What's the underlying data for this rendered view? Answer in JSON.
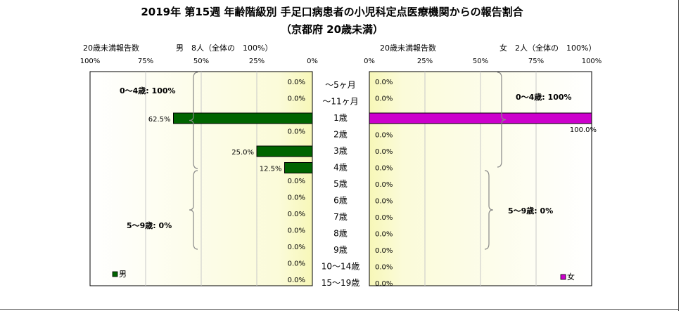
{
  "chart_data": {
    "type": "bar",
    "title": "2019年 第15週 年齢階級別 手足口病患者の小児科定点医療機関からの報告割合",
    "subtitle": "（京都府 20歳未満）",
    "categories": [
      "～5ヶ月",
      "～11ヶ月",
      "1歳",
      "2歳",
      "3歳",
      "4歳",
      "5歳",
      "6歳",
      "7歳",
      "8歳",
      "9歳",
      "10～14歳",
      "15～19歳"
    ],
    "xlim": [
      0,
      100
    ],
    "ticks": [
      "100%",
      "75%",
      "50%",
      "25%",
      "0%"
    ],
    "ticks_right": [
      "0%",
      "25%",
      "50%",
      "75%",
      "100%"
    ],
    "series": [
      {
        "name": "男",
        "color": "#006400",
        "values": [
          0.0,
          0.0,
          62.5,
          0.0,
          25.0,
          12.5,
          0.0,
          0.0,
          0.0,
          0.0,
          0.0,
          0.0,
          0.0
        ],
        "labels": [
          "0.0%",
          "0.0%",
          "62.5%",
          "0.0%",
          "25.0%",
          "12.5%",
          "0.0%",
          "0.0%",
          "0.0%",
          "0.0%",
          "0.0%",
          "0.0%",
          "0.0%"
        ],
        "header_left": "20歳未満報告数",
        "header_right": "男　8人（全体の　100%）",
        "groups": [
          "0～4歳: 100%",
          "5～9歳: 0%"
        ]
      },
      {
        "name": "女",
        "color": "#cc00cc",
        "values": [
          0.0,
          0.0,
          100.0,
          0.0,
          0.0,
          0.0,
          0.0,
          0.0,
          0.0,
          0.0,
          0.0,
          0.0,
          0.0
        ],
        "labels": [
          "0.0%",
          "0.0%",
          "100.0%",
          "0.0%",
          "0.0%",
          "0.0%",
          "0.0%",
          "0.0%",
          "0.0%",
          "0.0%",
          "0.0%",
          "0.0%",
          "0.0%"
        ],
        "header_left": "20歳未満報告数",
        "header_right": "女　2人（全体の　100%）",
        "groups": [
          "0～4歳: 100%",
          "5～9歳: 0%"
        ]
      }
    ]
  }
}
